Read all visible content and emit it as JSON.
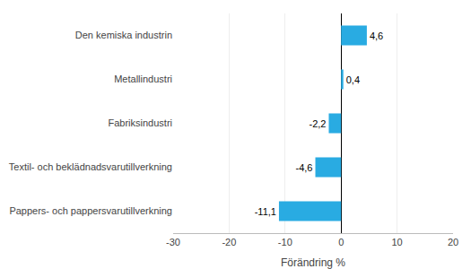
{
  "chart_data": {
    "type": "bar",
    "orientation": "horizontal",
    "xlabel": "Förändring %",
    "categories": [
      "Pappers- och pappersvarutillverkning",
      "Textil- och beklädnadsvarutillverkning",
      "Fabriksindustri",
      "Metallindustri",
      "Den kemiska industrin"
    ],
    "values": [
      -11.1,
      -4.6,
      -2.2,
      0.4,
      4.6
    ],
    "value_labels": [
      "-11,1",
      "-4,6",
      "-2,2",
      "0,4",
      "4,6"
    ],
    "data_labels": true,
    "color": "#29abe2",
    "xlim": [
      -30,
      20
    ],
    "xticks": [
      -30,
      -20,
      -10,
      0,
      10,
      20
    ],
    "grid": true
  }
}
